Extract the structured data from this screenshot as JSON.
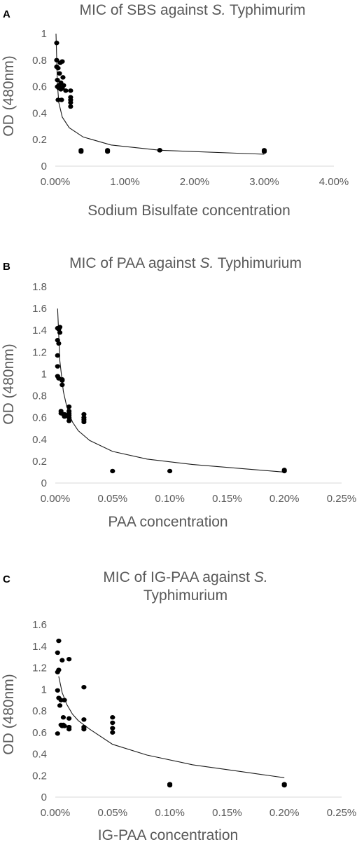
{
  "panels": [
    {
      "letter": "A",
      "title_pre": "MIC of SBS against ",
      "title_italic": "S.",
      "title_post": " Typhimurim",
      "title_line2": "",
      "xlabel": "Sodium Bisulfate concentration",
      "ylabel": "OD (480nm)"
    },
    {
      "letter": "B",
      "title_pre": "MIC of PAA against ",
      "title_italic": "S.",
      "title_post": " Typhimurium",
      "title_line2": "",
      "xlabel": "PAA concentration",
      "ylabel": "OD (480nm)"
    },
    {
      "letter": "C",
      "title_pre": "MIC of IG-PAA against ",
      "title_italic": "S.",
      "title_post": "",
      "title_line2": "Typhimurium",
      "xlabel": "IG-PAA concentration",
      "ylabel": "OD (480nm)"
    }
  ],
  "chart_data": [
    {
      "type": "scatter",
      "title": "MIC of SBS against S. Typhimurim",
      "xlabel": "Sodium Bisulfate concentration",
      "ylabel": "OD (480nm)",
      "xlim": [
        0,
        0.04
      ],
      "ylim": [
        0,
        1
      ],
      "xticks": [
        0,
        0.01,
        0.02,
        0.03,
        0.04
      ],
      "xtick_labels": [
        "0.00%",
        "1.00%",
        "2.00%",
        "3.00%",
        "4.00%"
      ],
      "yticks": [
        0,
        0.2,
        0.4,
        0.6,
        0.8,
        1
      ],
      "ytick_labels": [
        "0",
        "0.2",
        "0.4",
        "0.6",
        "0.8",
        "1"
      ],
      "grid": false,
      "points": {
        "x": [
          0.0002,
          0.0002,
          0.0002,
          0.0003,
          0.0003,
          0.0004,
          0.0004,
          0.0005,
          0.0005,
          0.0006,
          0.0007,
          0.0008,
          0.0008,
          0.0009,
          0.001,
          0.001,
          0.0011,
          0.0012,
          0.0015,
          0.0022,
          0.0022,
          0.0022,
          0.0022,
          0.0022,
          0.0037,
          0.0037,
          0.0075,
          0.0075,
          0.015,
          0.015,
          0.03,
          0.03
        ],
        "y": [
          0.93,
          0.8,
          0.75,
          0.65,
          0.6,
          0.5,
          0.74,
          0.61,
          0.59,
          0.7,
          0.78,
          0.63,
          0.58,
          0.5,
          0.59,
          0.79,
          0.67,
          0.61,
          0.57,
          0.57,
          0.52,
          0.5,
          0.48,
          0.45,
          0.12,
          0.11,
          0.12,
          0.11,
          0.12,
          0.12,
          0.12,
          0.11
        ]
      },
      "trendline": {
        "x": [
          0.0001,
          0.0003,
          0.0005,
          0.001,
          0.002,
          0.004,
          0.008,
          0.015,
          0.03
        ],
        "y": [
          1.0,
          0.62,
          0.48,
          0.37,
          0.29,
          0.22,
          0.16,
          0.12,
          0.09
        ]
      }
    },
    {
      "type": "scatter",
      "title": "MIC of PAA against S. Typhimurium",
      "xlabel": "PAA concentration",
      "ylabel": "OD (480nm)",
      "xlim": [
        0,
        0.0025
      ],
      "ylim": [
        0,
        1.8
      ],
      "xticks": [
        0,
        0.0005,
        0.001,
        0.0015,
        0.002,
        0.0025
      ],
      "xtick_labels": [
        "0.00%",
        "0.05%",
        "0.10%",
        "0.15%",
        "0.20%",
        "0.25%"
      ],
      "yticks": [
        0,
        0.2,
        0.4,
        0.6,
        0.8,
        1,
        1.2,
        1.4,
        1.6,
        1.8
      ],
      "ytick_labels": [
        "0",
        "0.2",
        "0.4",
        "0.6",
        "0.8",
        "1",
        "1.2",
        "1.4",
        "1.6",
        "1.8"
      ],
      "grid": false,
      "points": {
        "x": [
          2e-05,
          2e-05,
          2e-05,
          2e-05,
          2e-05,
          3e-05,
          3e-05,
          3e-05,
          4e-05,
          4e-05,
          5e-05,
          5e-05,
          6e-05,
          6e-05,
          6e-05,
          7e-05,
          8e-05,
          8e-05,
          0.00012,
          0.00012,
          0.00012,
          0.00012,
          0.00012,
          0.00012,
          0.00025,
          0.00025,
          0.00025,
          0.00025,
          0.0005,
          0.001,
          0.002,
          0.002
        ],
        "y": [
          1.42,
          1.31,
          1.17,
          1.07,
          0.98,
          1.41,
          1.28,
          0.96,
          1.43,
          1.38,
          0.66,
          0.64,
          0.94,
          0.95,
          0.9,
          0.63,
          0.61,
          0.63,
          0.7,
          0.66,
          0.64,
          0.62,
          0.6,
          0.57,
          0.63,
          0.6,
          0.58,
          0.56,
          0.11,
          0.11,
          0.12,
          0.11
        ]
      },
      "trendline": {
        "x": [
          2e-05,
          4e-05,
          7e-05,
          0.0001,
          0.00015,
          0.0002,
          0.0003,
          0.0005,
          0.0008,
          0.0012,
          0.002
        ],
        "y": [
          1.6,
          1.12,
          0.84,
          0.7,
          0.56,
          0.48,
          0.39,
          0.29,
          0.22,
          0.17,
          0.1
        ]
      }
    },
    {
      "type": "scatter",
      "title": "MIC of IG-PAA against S. Typhimurium",
      "xlabel": "IG-PAA concentration",
      "ylabel": "OD (480nm)",
      "xlim": [
        0,
        0.0025
      ],
      "ylim": [
        0,
        1.6
      ],
      "xticks": [
        0,
        0.0005,
        0.001,
        0.0015,
        0.002,
        0.0025
      ],
      "xtick_labels": [
        "0.00%",
        "0.05%",
        "0.10%",
        "0.15%",
        "0.20%",
        "0.25%"
      ],
      "yticks": [
        0,
        0.2,
        0.4,
        0.6,
        0.8,
        1,
        1.2,
        1.4,
        1.6
      ],
      "ytick_labels": [
        "0",
        "0.2",
        "0.4",
        "0.6",
        "0.8",
        "1",
        "1.2",
        "1.4",
        "1.6"
      ],
      "grid": false,
      "points": {
        "x": [
          2e-05,
          2e-05,
          2e-05,
          2e-05,
          3e-05,
          3e-05,
          3e-05,
          4e-05,
          5e-05,
          5e-05,
          6e-05,
          6e-05,
          7e-05,
          7e-05,
          8e-05,
          8e-05,
          0.00012,
          0.00012,
          0.00012,
          0.00012,
          0.00025,
          0.00025,
          0.00025,
          0.00025,
          0.0005,
          0.0005,
          0.0005,
          0.0005,
          0.001,
          0.001,
          0.002,
          0.002
        ],
        "y": [
          1.34,
          1.16,
          0.99,
          0.59,
          1.45,
          1.18,
          0.92,
          0.85,
          0.67,
          0.9,
          0.66,
          1.27,
          0.74,
          0.67,
          0.9,
          0.66,
          1.28,
          0.73,
          0.65,
          0.63,
          1.02,
          0.72,
          0.65,
          0.63,
          0.74,
          0.69,
          0.64,
          0.6,
          0.12,
          0.11,
          0.12,
          0.11
        ]
      },
      "trendline": {
        "x": [
          3e-05,
          6e-05,
          0.0001,
          0.00015,
          0.0002,
          0.0003,
          0.0005,
          0.0008,
          0.0012,
          0.0016,
          0.002
        ],
        "y": [
          1.12,
          0.97,
          0.86,
          0.77,
          0.71,
          0.63,
          0.49,
          0.39,
          0.3,
          0.24,
          0.18
        ]
      }
    }
  ]
}
